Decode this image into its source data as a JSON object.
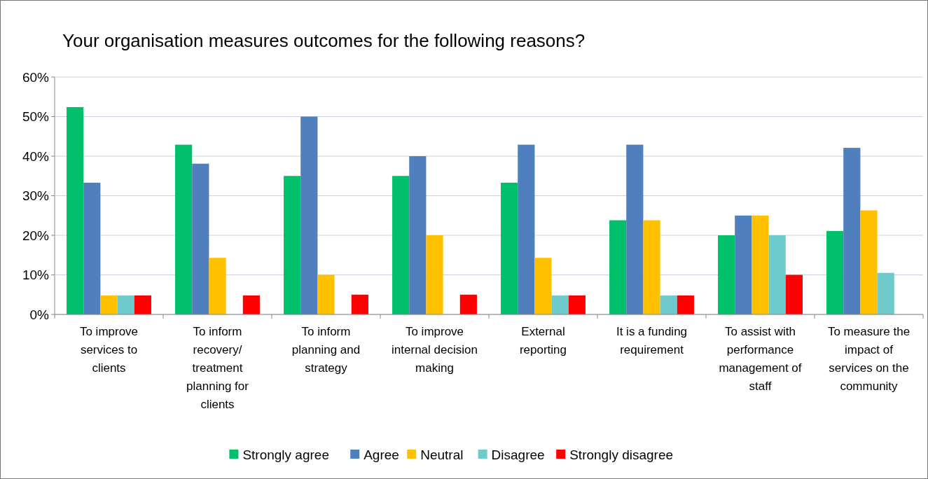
{
  "chart_data": {
    "type": "bar",
    "title": "Your organisation measures outcomes for the following reasons?",
    "categories": [
      "To improve services to clients",
      "To inform recovery/ treatment planning for clients",
      "To inform planning and strategy",
      "To improve internal decision making",
      "External reporting",
      "It is a funding requirement",
      "To assist with performance management of staff",
      "To measure the impact of services on the community"
    ],
    "series": [
      {
        "name": "Strongly agree",
        "color": "#00c06b",
        "values": [
          52.4,
          42.9,
          35,
          35,
          33.3,
          23.8,
          20,
          21.1
        ]
      },
      {
        "name": "Agree",
        "color": "#4f7fbc",
        "values": [
          33.3,
          38.1,
          50,
          40,
          42.9,
          42.9,
          25,
          42.1
        ]
      },
      {
        "name": "Neutral",
        "color": "#ffc000",
        "values": [
          4.8,
          14.3,
          10,
          20,
          14.3,
          23.8,
          25,
          26.3
        ]
      },
      {
        "name": "Disagree",
        "color": "#6fcacc",
        "values": [
          4.8,
          0,
          0,
          0,
          4.8,
          4.8,
          20,
          10.5
        ]
      },
      {
        "name": "Strongly disagree",
        "color": "#ff0000",
        "values": [
          4.8,
          4.8,
          5,
          5,
          4.8,
          4.8,
          10,
          0
        ]
      }
    ],
    "ylim": [
      0,
      60
    ],
    "yticks": [
      {
        "value": 0,
        "label": "0%"
      },
      {
        "value": 10,
        "label": "10%"
      },
      {
        "value": 20,
        "label": "20%"
      },
      {
        "value": 30,
        "label": "30%"
      },
      {
        "value": 40,
        "label": "40%"
      },
      {
        "value": 50,
        "label": "50%"
      },
      {
        "value": 60,
        "label": "60%"
      }
    ],
    "grid": "y",
    "legend": "bottom"
  }
}
